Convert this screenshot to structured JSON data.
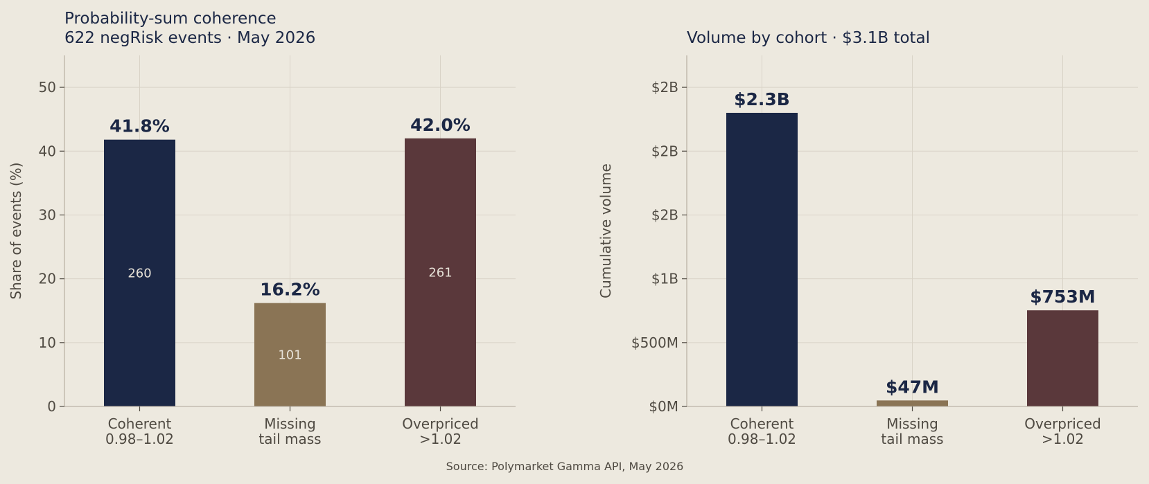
{
  "source": "Source: Polymarket Gamma API, May 2026",
  "colors": {
    "background": "#ede9df",
    "navy": "#1b2745",
    "tan": "#8a7455",
    "maroon": "#5a383b",
    "grid": "#d9d3c7",
    "axis": "#bcb3a6",
    "tick_text": "#4f4a42",
    "count_text": "#e7e2d8"
  },
  "chart_data": [
    {
      "type": "bar",
      "title_line1": "Probability-sum coherence",
      "title_line2": "622 negRisk events · May 2026",
      "categories": [
        [
          "Coherent",
          "0.98–1.02"
        ],
        [
          "Missing",
          "tail mass"
        ],
        [
          "Overpriced",
          ">1.02"
        ]
      ],
      "values": [
        41.8,
        16.2,
        42.0
      ],
      "value_labels": [
        "41.8%",
        "16.2%",
        "42.0%"
      ],
      "counts": [
        "260",
        "101",
        "261"
      ],
      "ylabel": "Share of events (%)",
      "ylim": [
        0,
        55
      ],
      "yticks": [
        0,
        10,
        20,
        30,
        40,
        50
      ],
      "ytick_labels": [
        "0",
        "10",
        "20",
        "30",
        "40",
        "50"
      ],
      "grid": true,
      "bar_colors": [
        "navy",
        "tan",
        "maroon"
      ]
    },
    {
      "type": "bar",
      "title_line1": "",
      "title_line2": "Volume by cohort  ·  $3.1B total",
      "categories": [
        [
          "Coherent",
          "0.98–1.02"
        ],
        [
          "Missing",
          "tail mass"
        ],
        [
          "Overpriced",
          ">1.02"
        ]
      ],
      "values": [
        2300000000,
        47000000,
        753000000
      ],
      "value_labels": [
        "$2.3B",
        "$47M",
        "$753M"
      ],
      "ylabel": "Cumulative volume",
      "ylim": [
        0,
        2750000000
      ],
      "yticks": [
        0,
        500000000,
        1000000000,
        1500000000,
        2000000000,
        2500000000
      ],
      "ytick_labels": [
        "$0M",
        "$500M",
        "$1B",
        "$2B",
        "$2B",
        "$2B"
      ],
      "grid": true,
      "bar_colors": [
        "navy",
        "tan",
        "maroon"
      ]
    }
  ]
}
